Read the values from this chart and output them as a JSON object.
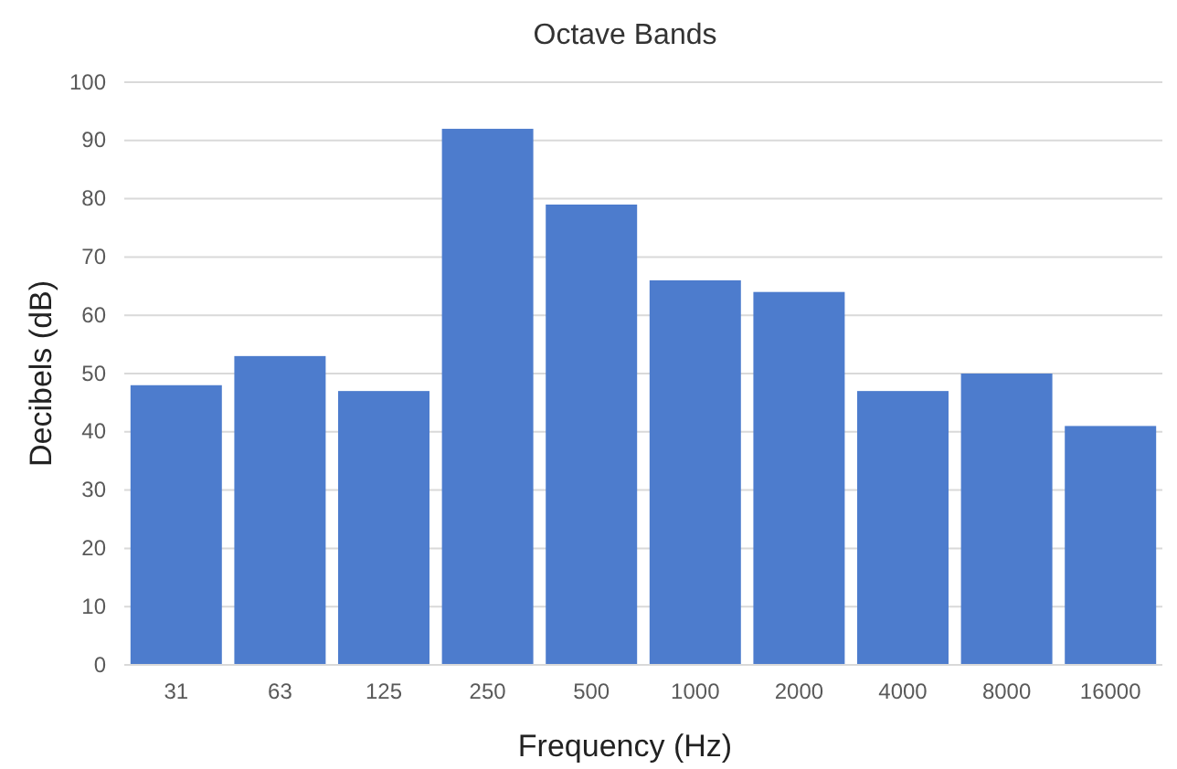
{
  "chart_data": {
    "type": "bar",
    "title": "Octave Bands",
    "xlabel": "Frequency (Hz)",
    "ylabel": "Decibels (dB)",
    "categories": [
      "31",
      "63",
      "125",
      "250",
      "500",
      "1000",
      "2000",
      "4000",
      "8000",
      "16000"
    ],
    "values": [
      48,
      53,
      47,
      92,
      79,
      66,
      64,
      47,
      50,
      41
    ],
    "color": "#4d7ccd",
    "ylim": [
      0,
      100
    ],
    "yticks": [
      0,
      10,
      20,
      30,
      40,
      50,
      60,
      70,
      80,
      90,
      100
    ],
    "grid": "y"
  }
}
